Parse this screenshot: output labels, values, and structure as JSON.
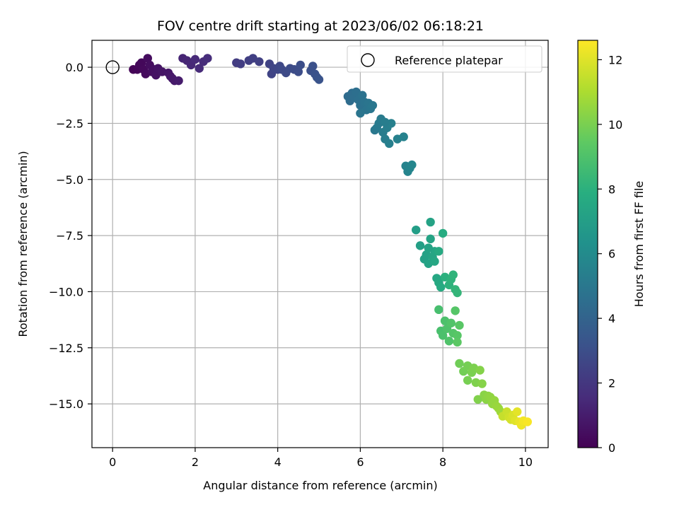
{
  "chart_data": {
    "type": "scatter",
    "title": "FOV centre drift starting at 2023/06/02 06:18:21",
    "xlabel": "Angular distance from reference (arcmin)",
    "ylabel": "Rotation from reference (arcmin)",
    "xlim": [
      -0.5,
      10.55
    ],
    "ylim": [
      -16.95,
      1.2
    ],
    "xticks": [
      0,
      2,
      4,
      6,
      8,
      10
    ],
    "xtick_labels": [
      "0",
      "2",
      "4",
      "6",
      "8",
      "10"
    ],
    "yticks": [
      0,
      -2.5,
      -5,
      -7.5,
      -10,
      -12.5,
      -15
    ],
    "ytick_labels": [
      "0.0",
      "−2.5",
      "−5.0",
      "−7.5",
      "−10.0",
      "−12.5",
      "−15.0"
    ],
    "grid": true,
    "legend": {
      "placement": "top-right",
      "entries": [
        {
          "label": "Reference platepar",
          "marker": "open-circle"
        }
      ]
    },
    "reference_point": {
      "x": 0,
      "y": 0
    },
    "colorbar": {
      "label": "Hours from first FF file",
      "colormap": "viridis",
      "range": [
        0,
        12.6
      ],
      "ticks": [
        0,
        2,
        4,
        6,
        8,
        10,
        12
      ],
      "tick_labels": [
        "0",
        "2",
        "4",
        "6",
        "8",
        "10",
        "12"
      ]
    },
    "series": [
      {
        "values": [
          {
            "x": 0.5,
            "y": -0.1,
            "t": 0.1
          },
          {
            "x": 0.6,
            "y": -0.1,
            "t": 0.15
          },
          {
            "x": 0.65,
            "y": 0.1,
            "t": 0.2
          },
          {
            "x": 0.7,
            "y": 0.2,
            "t": 0.25
          },
          {
            "x": 0.75,
            "y": -0.1,
            "t": 0.3
          },
          {
            "x": 0.8,
            "y": -0.3,
            "t": 0.35
          },
          {
            "x": 0.85,
            "y": 0.4,
            "t": 0.4
          },
          {
            "x": 0.9,
            "y": 0.1,
            "t": 0.45
          },
          {
            "x": 0.95,
            "y": -0.2,
            "t": 0.5
          },
          {
            "x": 1.0,
            "y": -0.1,
            "t": 0.55
          },
          {
            "x": 1.05,
            "y": -0.35,
            "t": 0.6
          },
          {
            "x": 1.1,
            "y": -0.05,
            "t": 0.65
          },
          {
            "x": 1.2,
            "y": -0.2,
            "t": 0.7
          },
          {
            "x": 1.35,
            "y": -0.25,
            "t": 0.75
          },
          {
            "x": 1.4,
            "y": -0.4,
            "t": 0.8
          },
          {
            "x": 1.45,
            "y": -0.5,
            "t": 0.85
          },
          {
            "x": 1.5,
            "y": -0.6,
            "t": 0.9
          },
          {
            "x": 1.6,
            "y": -0.6,
            "t": 0.95
          },
          {
            "x": 1.7,
            "y": 0.4,
            "t": 1.3
          },
          {
            "x": 1.8,
            "y": 0.3,
            "t": 1.35
          },
          {
            "x": 1.9,
            "y": 0.1,
            "t": 1.4
          },
          {
            "x": 2.0,
            "y": 0.35,
            "t": 1.45
          },
          {
            "x": 2.1,
            "y": -0.05,
            "t": 1.5
          },
          {
            "x": 2.2,
            "y": 0.25,
            "t": 1.55
          },
          {
            "x": 2.3,
            "y": 0.4,
            "t": 1.6
          },
          {
            "x": 3.0,
            "y": 0.2,
            "t": 2.2
          },
          {
            "x": 3.1,
            "y": 0.15,
            "t": 2.25
          },
          {
            "x": 3.3,
            "y": 0.3,
            "t": 2.3
          },
          {
            "x": 3.4,
            "y": 0.4,
            "t": 2.35
          },
          {
            "x": 3.55,
            "y": 0.25,
            "t": 2.4
          },
          {
            "x": 3.8,
            "y": 0.15,
            "t": 2.5
          },
          {
            "x": 3.85,
            "y": -0.3,
            "t": 2.55
          },
          {
            "x": 3.9,
            "y": -0.05,
            "t": 2.6
          },
          {
            "x": 4.0,
            "y": -0.1,
            "t": 2.65
          },
          {
            "x": 4.05,
            "y": 0.05,
            "t": 2.7
          },
          {
            "x": 4.1,
            "y": -0.1,
            "t": 2.75
          },
          {
            "x": 4.2,
            "y": -0.25,
            "t": 2.8
          },
          {
            "x": 4.3,
            "y": -0.05,
            "t": 2.85
          },
          {
            "x": 4.4,
            "y": -0.1,
            "t": 2.9
          },
          {
            "x": 4.5,
            "y": -0.2,
            "t": 2.95
          },
          {
            "x": 4.55,
            "y": 0.1,
            "t": 3.0
          },
          {
            "x": 4.8,
            "y": -0.15,
            "t": 3.05
          },
          {
            "x": 4.85,
            "y": 0.05,
            "t": 3.1
          },
          {
            "x": 4.9,
            "y": -0.3,
            "t": 3.15
          },
          {
            "x": 4.95,
            "y": -0.45,
            "t": 3.2
          },
          {
            "x": 5.0,
            "y": -0.55,
            "t": 3.25
          },
          {
            "x": 5.7,
            "y": -1.3,
            "t": 4.4
          },
          {
            "x": 5.75,
            "y": -1.5,
            "t": 4.45
          },
          {
            "x": 5.8,
            "y": -1.15,
            "t": 4.5
          },
          {
            "x": 5.85,
            "y": -1.35,
            "t": 4.55
          },
          {
            "x": 5.9,
            "y": -1.1,
            "t": 4.6
          },
          {
            "x": 5.95,
            "y": -1.45,
            "t": 4.65
          },
          {
            "x": 6.0,
            "y": -1.7,
            "t": 4.7
          },
          {
            "x": 6.05,
            "y": -1.25,
            "t": 4.75
          },
          {
            "x": 6.1,
            "y": -1.55,
            "t": 4.8
          },
          {
            "x": 6.15,
            "y": -1.9,
            "t": 4.85
          },
          {
            "x": 6.2,
            "y": -1.6,
            "t": 4.9
          },
          {
            "x": 6.25,
            "y": -1.85,
            "t": 4.95
          },
          {
            "x": 6.3,
            "y": -1.7,
            "t": 5.0
          },
          {
            "x": 6.35,
            "y": -2.8,
            "t": 5.05
          },
          {
            "x": 6.4,
            "y": -2.7,
            "t": 5.1
          },
          {
            "x": 6.45,
            "y": -2.5,
            "t": 5.15
          },
          {
            "x": 6.5,
            "y": -2.3,
            "t": 5.2
          },
          {
            "x": 6.55,
            "y": -2.9,
            "t": 5.25
          },
          {
            "x": 6.6,
            "y": -3.2,
            "t": 5.3
          },
          {
            "x": 6.65,
            "y": -2.7,
            "t": 5.35
          },
          {
            "x": 6.7,
            "y": -3.4,
            "t": 5.4
          },
          {
            "x": 6.75,
            "y": -2.5,
            "t": 5.45
          },
          {
            "x": 6.9,
            "y": -3.2,
            "t": 5.5
          },
          {
            "x": 7.05,
            "y": -3.1,
            "t": 5.55
          },
          {
            "x": 7.1,
            "y": -4.4,
            "t": 5.6
          },
          {
            "x": 7.15,
            "y": -4.65,
            "t": 5.65
          },
          {
            "x": 7.2,
            "y": -4.5,
            "t": 5.7
          },
          {
            "x": 7.25,
            "y": -4.35,
            "t": 5.75
          },
          {
            "x": 6.0,
            "y": -2.05,
            "t": 4.9
          },
          {
            "x": 6.6,
            "y": -2.45,
            "t": 5.3
          },
          {
            "x": 7.35,
            "y": -7.25,
            "t": 7.0
          },
          {
            "x": 7.45,
            "y": -7.95,
            "t": 7.05
          },
          {
            "x": 7.55,
            "y": -8.55,
            "t": 7.1
          },
          {
            "x": 7.6,
            "y": -8.35,
            "t": 7.15
          },
          {
            "x": 7.65,
            "y": -8.75,
            "t": 7.2
          },
          {
            "x": 7.7,
            "y": -6.9,
            "t": 7.25
          },
          {
            "x": 7.7,
            "y": -7.65,
            "t": 7.3
          },
          {
            "x": 7.75,
            "y": -8.45,
            "t": 7.35
          },
          {
            "x": 7.8,
            "y": -8.2,
            "t": 7.4
          },
          {
            "x": 7.8,
            "y": -8.65,
            "t": 7.45
          },
          {
            "x": 7.85,
            "y": -9.4,
            "t": 7.5
          },
          {
            "x": 7.9,
            "y": -9.6,
            "t": 7.55
          },
          {
            "x": 7.9,
            "y": -8.2,
            "t": 7.6
          },
          {
            "x": 7.95,
            "y": -9.8,
            "t": 7.65
          },
          {
            "x": 8.0,
            "y": -7.4,
            "t": 7.7
          },
          {
            "x": 7.65,
            "y": -8.05,
            "t": 7.2
          },
          {
            "x": 8.05,
            "y": -9.35,
            "t": 8.0
          },
          {
            "x": 8.15,
            "y": -9.7,
            "t": 8.05
          },
          {
            "x": 8.2,
            "y": -9.45,
            "t": 8.1
          },
          {
            "x": 8.25,
            "y": -9.25,
            "t": 8.15
          },
          {
            "x": 8.3,
            "y": -9.9,
            "t": 8.2
          },
          {
            "x": 8.35,
            "y": -10.05,
            "t": 8.25
          },
          {
            "x": 7.9,
            "y": -10.8,
            "t": 8.8
          },
          {
            "x": 7.95,
            "y": -11.75,
            "t": 8.85
          },
          {
            "x": 8.0,
            "y": -11.95,
            "t": 8.9
          },
          {
            "x": 8.05,
            "y": -11.3,
            "t": 8.95
          },
          {
            "x": 8.1,
            "y": -11.65,
            "t": 9.0
          },
          {
            "x": 8.15,
            "y": -12.2,
            "t": 9.05
          },
          {
            "x": 8.2,
            "y": -11.4,
            "t": 9.1
          },
          {
            "x": 8.25,
            "y": -11.85,
            "t": 9.15
          },
          {
            "x": 8.3,
            "y": -10.85,
            "t": 9.2
          },
          {
            "x": 8.35,
            "y": -11.95,
            "t": 9.25
          },
          {
            "x": 8.4,
            "y": -11.5,
            "t": 9.3
          },
          {
            "x": 8.35,
            "y": -12.25,
            "t": 9.35
          },
          {
            "x": 8.4,
            "y": -13.2,
            "t": 9.8
          },
          {
            "x": 8.5,
            "y": -13.55,
            "t": 9.85
          },
          {
            "x": 8.6,
            "y": -13.3,
            "t": 9.9
          },
          {
            "x": 8.6,
            "y": -13.95,
            "t": 9.95
          },
          {
            "x": 8.7,
            "y": -13.6,
            "t": 10.0
          },
          {
            "x": 8.75,
            "y": -13.4,
            "t": 10.05
          },
          {
            "x": 8.8,
            "y": -14.05,
            "t": 10.1
          },
          {
            "x": 8.85,
            "y": -14.8,
            "t": 10.15
          },
          {
            "x": 8.9,
            "y": -13.5,
            "t": 10.2
          },
          {
            "x": 8.95,
            "y": -14.1,
            "t": 10.25
          },
          {
            "x": 9.0,
            "y": -14.6,
            "t": 10.3
          },
          {
            "x": 9.05,
            "y": -14.8,
            "t": 10.35
          },
          {
            "x": 9.1,
            "y": -14.65,
            "t": 10.4
          },
          {
            "x": 9.15,
            "y": -14.7,
            "t": 10.45
          },
          {
            "x": 9.2,
            "y": -15.0,
            "t": 10.5
          },
          {
            "x": 9.25,
            "y": -14.85,
            "t": 10.55
          },
          {
            "x": 9.3,
            "y": -15.1,
            "t": 10.6
          },
          {
            "x": 9.35,
            "y": -15.2,
            "t": 10.65
          },
          {
            "x": 9.4,
            "y": -15.35,
            "t": 10.7
          },
          {
            "x": 9.45,
            "y": -15.55,
            "t": 11.5
          },
          {
            "x": 9.55,
            "y": -15.35,
            "t": 11.6
          },
          {
            "x": 9.6,
            "y": -15.6,
            "t": 11.7
          },
          {
            "x": 9.65,
            "y": -15.7,
            "t": 11.8
          },
          {
            "x": 9.7,
            "y": -15.5,
            "t": 11.9
          },
          {
            "x": 9.75,
            "y": -15.75,
            "t": 12.0
          },
          {
            "x": 9.8,
            "y": -15.35,
            "t": 12.1
          },
          {
            "x": 9.85,
            "y": -15.8,
            "t": 12.2
          },
          {
            "x": 9.9,
            "y": -15.95,
            "t": 12.3
          },
          {
            "x": 9.95,
            "y": -15.75,
            "t": 12.4
          },
          {
            "x": 10.05,
            "y": -15.8,
            "t": 12.5
          }
        ]
      }
    ]
  }
}
